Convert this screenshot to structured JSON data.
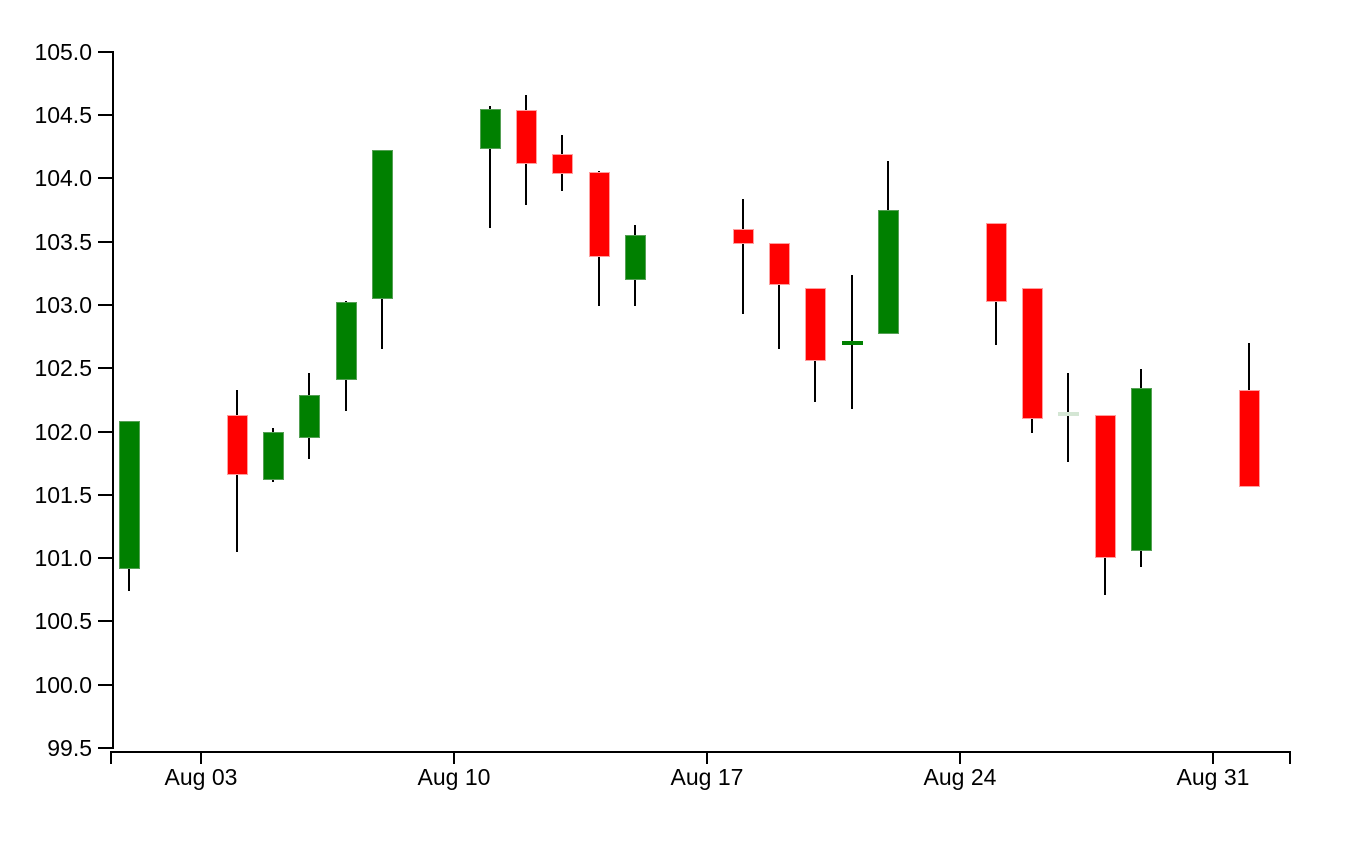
{
  "chart_data": {
    "type": "candlestick",
    "title": "",
    "xlabel": "",
    "ylabel": "",
    "grid": false,
    "legend": "none",
    "background_color": "#ffffff",
    "colors": {
      "up": "#008000",
      "down": "#ff0000",
      "wick": "#000000",
      "doji_faint": "#d4e6d4",
      "axis": "#000000"
    },
    "y_axis": {
      "min": 99.5,
      "max": 105.0,
      "step": 0.5,
      "tick_labels": [
        "99.5",
        "100.0",
        "100.5",
        "101.0",
        "101.5",
        "102.0",
        "102.5",
        "103.0",
        "103.5",
        "104.0",
        "104.5",
        "105.0"
      ]
    },
    "x_axis": {
      "tick_labels": [
        "Aug 03",
        "Aug 10",
        "Aug 17",
        "Aug 24",
        "Aug 31"
      ]
    },
    "candles": [
      {
        "date": "Aug 01",
        "open": 100.91,
        "high": 102.08,
        "low": 100.74,
        "close": 102.08,
        "variant": "up"
      },
      {
        "date": "Aug 04",
        "open": 102.13,
        "high": 102.33,
        "low": 101.05,
        "close": 101.66,
        "variant": "down"
      },
      {
        "date": "Aug 05",
        "open": 101.62,
        "high": 102.03,
        "low": 101.6,
        "close": 102.0,
        "variant": "up"
      },
      {
        "date": "Aug 06",
        "open": 101.95,
        "high": 102.46,
        "low": 101.78,
        "close": 102.29,
        "variant": "up"
      },
      {
        "date": "Aug 07",
        "open": 102.41,
        "high": 103.03,
        "low": 102.16,
        "close": 103.02,
        "variant": "up"
      },
      {
        "date": "Aug 08",
        "open": 103.05,
        "high": 104.22,
        "low": 102.65,
        "close": 104.22,
        "variant": "up"
      },
      {
        "date": "Aug 11",
        "open": 104.23,
        "high": 104.57,
        "low": 103.61,
        "close": 104.55,
        "variant": "up"
      },
      {
        "date": "Aug 12",
        "open": 104.54,
        "high": 104.66,
        "low": 103.79,
        "close": 104.11,
        "variant": "down"
      },
      {
        "date": "Aug 13",
        "open": 104.19,
        "high": 104.34,
        "low": 103.9,
        "close": 104.03,
        "variant": "down"
      },
      {
        "date": "Aug 14",
        "open": 104.05,
        "high": 104.06,
        "low": 102.99,
        "close": 103.38,
        "variant": "down"
      },
      {
        "date": "Aug 15",
        "open": 103.2,
        "high": 103.63,
        "low": 102.99,
        "close": 103.55,
        "variant": "up"
      },
      {
        "date": "Aug 18",
        "open": 103.6,
        "high": 103.84,
        "low": 102.93,
        "close": 103.48,
        "variant": "down"
      },
      {
        "date": "Aug 19",
        "open": 103.49,
        "high": 103.49,
        "low": 102.65,
        "close": 103.16,
        "variant": "down"
      },
      {
        "date": "Aug 20",
        "open": 103.13,
        "high": 103.13,
        "low": 102.23,
        "close": 102.56,
        "variant": "down"
      },
      {
        "date": "Aug 21",
        "open": 102.69,
        "high": 103.24,
        "low": 102.18,
        "close": 102.7,
        "variant": "doji-up"
      },
      {
        "date": "Aug 22",
        "open": 102.77,
        "high": 104.14,
        "low": 102.77,
        "close": 103.75,
        "variant": "up"
      },
      {
        "date": "Aug 25",
        "open": 103.65,
        "high": 103.65,
        "low": 102.68,
        "close": 103.02,
        "variant": "down"
      },
      {
        "date": "Aug 26",
        "open": 103.13,
        "high": 103.13,
        "low": 101.99,
        "close": 102.1,
        "variant": "down"
      },
      {
        "date": "Aug 27",
        "open": 102.14,
        "high": 102.46,
        "low": 101.76,
        "close": 102.14,
        "variant": "doji-faint"
      },
      {
        "date": "Aug 28",
        "open": 102.13,
        "high": 102.13,
        "low": 100.71,
        "close": 101.0,
        "variant": "down"
      },
      {
        "date": "Aug 29",
        "open": 101.06,
        "high": 102.49,
        "low": 100.93,
        "close": 102.34,
        "variant": "up"
      },
      {
        "date": "Sep 01",
        "open": 102.33,
        "high": 102.7,
        "low": 101.56,
        "close": 101.56,
        "variant": "down"
      }
    ]
  }
}
